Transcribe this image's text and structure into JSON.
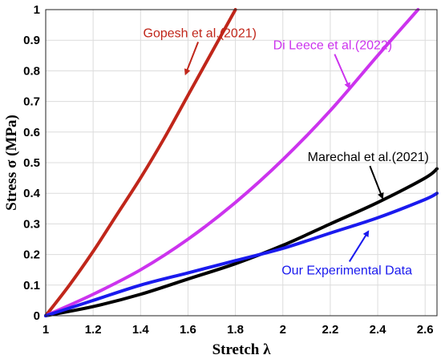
{
  "chart_data": {
    "type": "line",
    "xlabel": "Stretch λ",
    "ylabel": "Stress σ (MPa)",
    "xlim": [
      1,
      2.65
    ],
    "ylim": [
      0,
      1
    ],
    "xticks": [
      "1",
      "1.2",
      "1.4",
      "1.6",
      "1.8",
      "2",
      "2.2",
      "2.4",
      "2.6"
    ],
    "yticks": [
      "0",
      "0.1",
      "0.2",
      "0.3",
      "0.4",
      "0.5",
      "0.6",
      "0.7",
      "0.8",
      "0.9",
      "1"
    ],
    "grid": true,
    "series": [
      {
        "name": "Gopesh et al.(2021)",
        "color": "#c0261a",
        "x": [
          1.0,
          1.1,
          1.2,
          1.3,
          1.4,
          1.5,
          1.6,
          1.7,
          1.8
        ],
        "y": [
          0.0,
          0.1,
          0.21,
          0.33,
          0.45,
          0.58,
          0.72,
          0.86,
          1.0
        ]
      },
      {
        "name": "Di Leece et al.(2022)",
        "color": "#cc33ee",
        "x": [
          1.0,
          1.2,
          1.4,
          1.6,
          1.8,
          2.0,
          2.2,
          2.4,
          2.57
        ],
        "y": [
          0.0,
          0.07,
          0.15,
          0.25,
          0.37,
          0.51,
          0.67,
          0.85,
          1.0
        ]
      },
      {
        "name": "Marechal et al.(2021)",
        "color": "#000000",
        "x": [
          1.0,
          1.2,
          1.4,
          1.6,
          1.8,
          2.0,
          2.2,
          2.4,
          2.6,
          2.65
        ],
        "y": [
          0.0,
          0.03,
          0.07,
          0.12,
          0.17,
          0.23,
          0.3,
          0.37,
          0.45,
          0.48
        ]
      },
      {
        "name": "Our Experimental Data",
        "color": "#1a1aee",
        "x": [
          1.0,
          1.2,
          1.4,
          1.6,
          1.8,
          2.0,
          2.2,
          2.4,
          2.6,
          2.65
        ],
        "y": [
          0.0,
          0.05,
          0.1,
          0.14,
          0.18,
          0.22,
          0.27,
          0.32,
          0.38,
          0.4
        ]
      }
    ],
    "annotations": [
      {
        "text": "Gopesh et al.(2021)",
        "color": "#c0261a",
        "x": 1.65,
        "y": 0.91,
        "arrow_to": [
          1.59,
          0.79
        ]
      },
      {
        "text": "Di Leece et al.(2022)",
        "color": "#cc33ee",
        "x": 2.21,
        "y": 0.87,
        "arrow_to": [
          2.28,
          0.745
        ]
      },
      {
        "text": "Marechal et al.(2021)",
        "color": "#000000",
        "x": 2.36,
        "y": 0.505,
        "arrow_to": [
          2.42,
          0.385
        ]
      },
      {
        "text": "Our Experimental Data",
        "color": "#1a1aee",
        "x": 2.27,
        "y": 0.135,
        "arrow_to": [
          2.36,
          0.275
        ]
      }
    ]
  }
}
